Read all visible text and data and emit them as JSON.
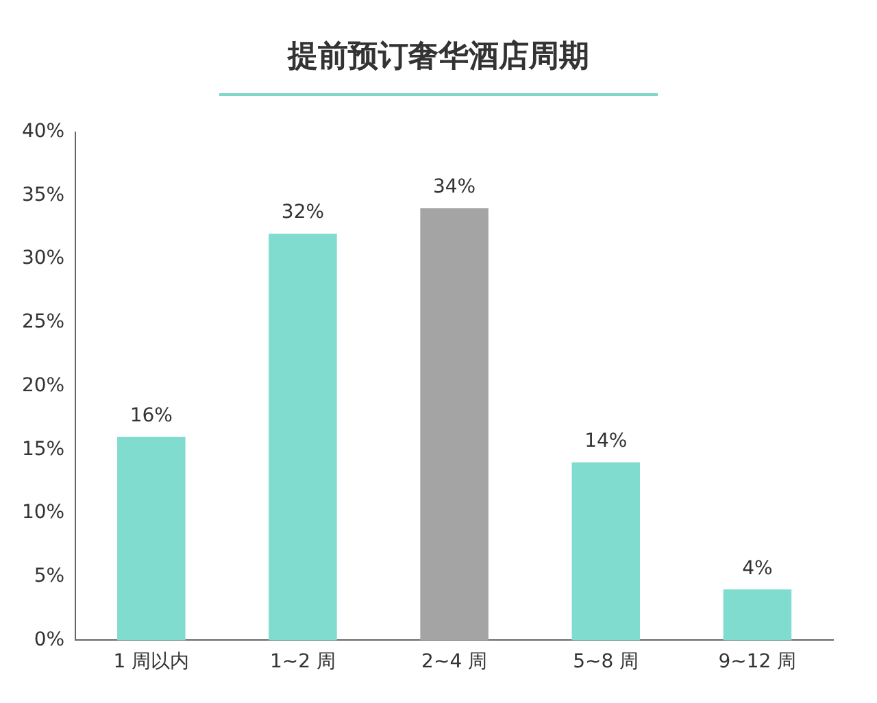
{
  "chart_data": {
    "type": "bar",
    "title": "提前预订奢华酒店周期",
    "categories": [
      "1 周以内",
      "1~2 周",
      "2~4 周",
      "5~8 周",
      "9~12 周"
    ],
    "values": [
      16,
      32,
      34,
      14,
      4
    ],
    "colors": [
      "#80dccf",
      "#80dccf",
      "#a5a4a5",
      "#80dccf",
      "#80dccf"
    ],
    "value_labels": [
      "16%",
      "32%",
      "34%",
      "14%",
      "4%"
    ],
    "ylim": [
      0,
      40
    ],
    "yticks": [
      {
        "value": 0,
        "label": "0%"
      },
      {
        "value": 5,
        "label": "5%"
      },
      {
        "value": 10,
        "label": "10%"
      },
      {
        "value": 15,
        "label": "15%"
      },
      {
        "value": 20,
        "label": "20%"
      },
      {
        "value": 25,
        "label": "25%"
      },
      {
        "value": 30,
        "label": "30%"
      },
      {
        "value": 35,
        "label": "35%"
      },
      {
        "value": 40,
        "label": "40%"
      }
    ],
    "grid": false,
    "legend": false
  }
}
